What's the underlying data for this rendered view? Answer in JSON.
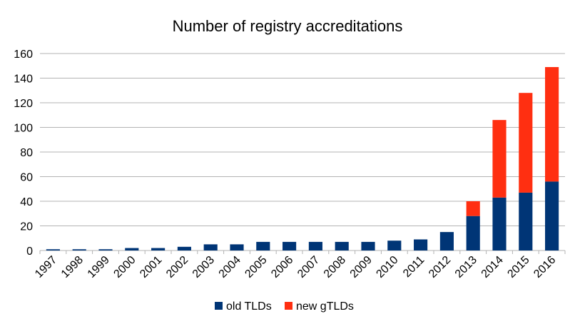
{
  "chart_data": {
    "type": "bar",
    "stacked": true,
    "title": "Number of registry accreditations",
    "xlabel": "",
    "ylabel": "",
    "categories": [
      "1997",
      "1998",
      "1999",
      "2000",
      "2001",
      "2002",
      "2003",
      "2004",
      "2005",
      "2006",
      "2007",
      "2008",
      "2009",
      "2010",
      "2011",
      "2012",
      "2013",
      "2014",
      "2015",
      "2016"
    ],
    "series": [
      {
        "name": "old TLDs",
        "color": "#003576",
        "values": [
          1,
          1,
          1,
          2,
          2,
          3,
          5,
          5,
          7,
          7,
          7,
          7,
          7,
          8,
          9,
          15,
          28,
          43,
          47,
          56
        ]
      },
      {
        "name": "new gTLDs",
        "color": "#ff2f11",
        "values": [
          0,
          0,
          0,
          0,
          0,
          0,
          0,
          0,
          0,
          0,
          0,
          0,
          0,
          0,
          0,
          0,
          12,
          63,
          81,
          93
        ]
      }
    ],
    "ylim": [
      0,
      160
    ],
    "yticks": [
      "0",
      "20",
      "40",
      "60",
      "80",
      "100",
      "120",
      "140",
      "160"
    ],
    "grid": true,
    "legend_position": "bottom"
  }
}
